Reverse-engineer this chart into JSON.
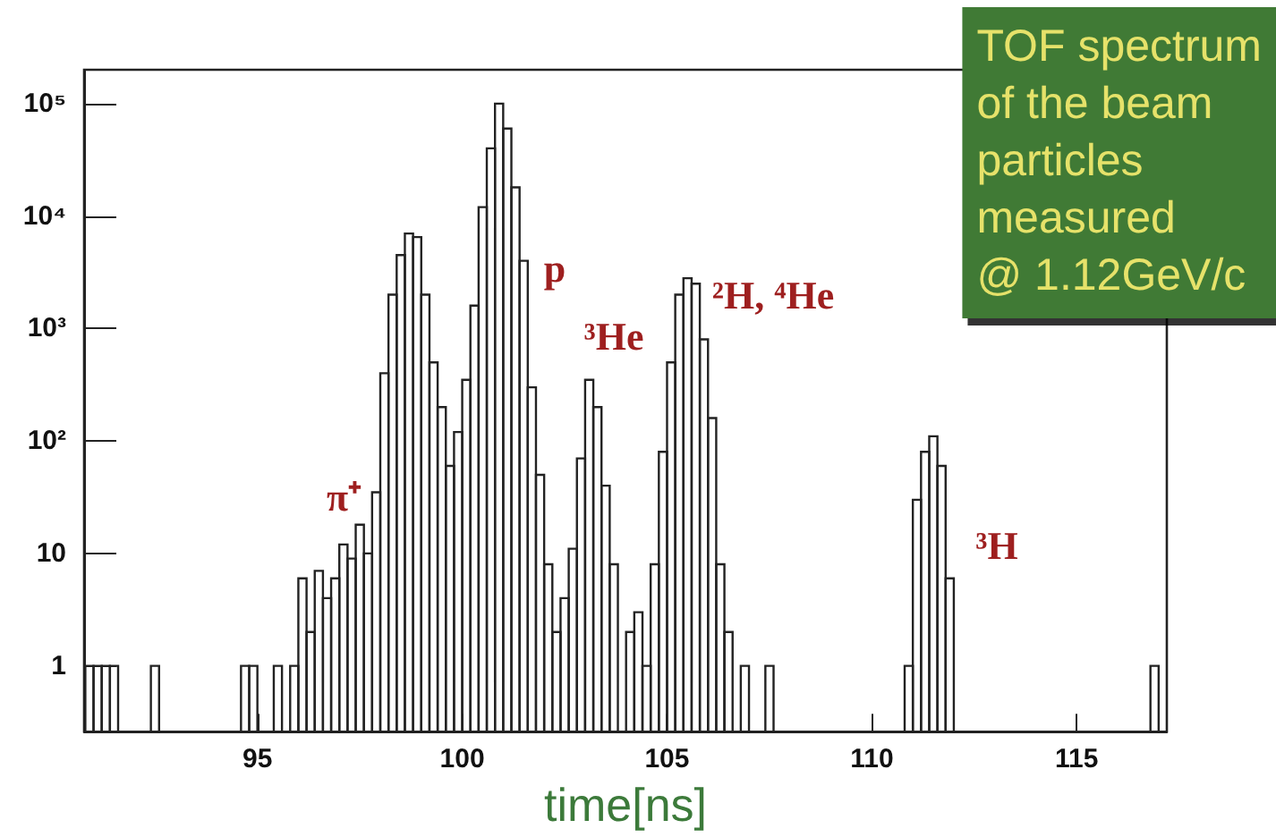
{
  "chart_data": {
    "type": "histogram",
    "title": "TOF spectrum\nof the beam\nparticles\nmeasured\n@ 1.12GeV/c",
    "xlabel": "time[ns]",
    "bins": [
      90.8,
      91.0,
      91.2,
      91.4,
      91.6,
      91.8,
      92.0,
      92.2,
      92.4,
      92.6,
      92.8,
      93.0,
      93.2,
      93.4,
      93.6,
      93.8,
      94.0,
      94.2,
      94.4,
      94.6,
      94.8,
      95.0,
      95.2,
      95.4,
      95.6,
      95.8,
      96.0,
      96.2,
      96.4,
      96.6,
      96.8,
      97.0,
      97.2,
      97.4,
      97.6,
      97.8,
      98.0,
      98.2,
      98.4,
      98.6,
      98.8,
      99.0,
      99.2,
      99.4,
      99.6,
      99.8,
      100.0,
      100.2,
      100.4,
      100.6,
      100.8,
      101.0,
      101.2,
      101.4,
      101.6,
      101.8,
      102.0,
      102.2,
      102.4,
      102.6,
      102.8,
      103.0,
      103.2,
      103.4,
      103.6,
      103.8,
      104.0,
      104.2,
      104.4,
      104.6,
      104.8,
      105.0,
      105.2,
      105.4,
      105.6,
      105.8,
      106.0,
      106.2,
      106.4,
      106.6,
      106.8,
      107.0,
      107.2,
      107.4,
      107.6,
      107.8,
      108.0,
      108.2,
      108.4,
      108.6,
      108.8,
      109.0,
      109.2,
      109.4,
      109.6,
      109.8,
      110.0,
      110.2,
      110.4,
      110.6,
      110.8,
      111.0,
      111.2,
      111.4,
      111.6,
      111.8,
      112.0,
      112.2,
      112.4,
      112.6,
      112.8,
      113.0,
      113.2,
      113.4,
      113.6,
      113.8,
      114.0,
      114.2,
      114.4,
      114.6,
      114.8,
      115.0,
      115.2,
      115.4,
      115.6,
      115.8,
      116.0,
      116.2,
      116.4,
      116.6,
      116.8,
      117.0,
      117.2
    ],
    "values": [
      1,
      1,
      1,
      1,
      null,
      null,
      null,
      null,
      1,
      null,
      null,
      null,
      null,
      null,
      null,
      null,
      null,
      null,
      null,
      1,
      1,
      null,
      null,
      1,
      null,
      1,
      6,
      2,
      7,
      4,
      6,
      12,
      9,
      18,
      10,
      35,
      400,
      2000,
      4500,
      7000,
      6500,
      2000,
      500,
      200,
      60,
      120,
      350,
      1600,
      12000,
      40000,
      100000,
      60000,
      18000,
      4000,
      300,
      50,
      8,
      2,
      4,
      11,
      70,
      350,
      200,
      40,
      8,
      null,
      2,
      3,
      1,
      8,
      80,
      500,
      2000,
      2800,
      2500,
      800,
      160,
      8,
      2,
      null,
      1,
      null,
      null,
      1,
      null,
      null,
      null,
      null,
      null,
      null,
      null,
      null,
      null,
      null,
      null,
      null,
      null,
      null,
      null,
      null,
      1,
      30,
      80,
      110,
      60,
      6,
      null,
      null,
      null,
      null,
      null,
      null,
      null,
      null,
      null,
      null,
      null,
      null,
      null,
      null,
      null,
      null,
      null,
      null,
      null,
      null,
      null,
      null,
      null,
      null,
      1,
      null
    ],
    "color": "#222222",
    "log": true,
    "xlim": [
      90.77,
      117.2
    ],
    "xticks": [
      95,
      100,
      105,
      110,
      115
    ],
    "ylim": [
      0.26,
      200000
    ],
    "yticks": [
      1,
      10,
      {
        "value": 100,
        "label": "10²"
      },
      {
        "value": 1000,
        "label": "10³"
      },
      {
        "value": 10000,
        "label": "10⁴"
      },
      {
        "value": 100000,
        "label": "10⁵"
      }
    ],
    "grid": false,
    "annotations": [
      "π⁺",
      "p",
      "³He",
      "²H, ⁴He",
      "³H"
    ]
  }
}
